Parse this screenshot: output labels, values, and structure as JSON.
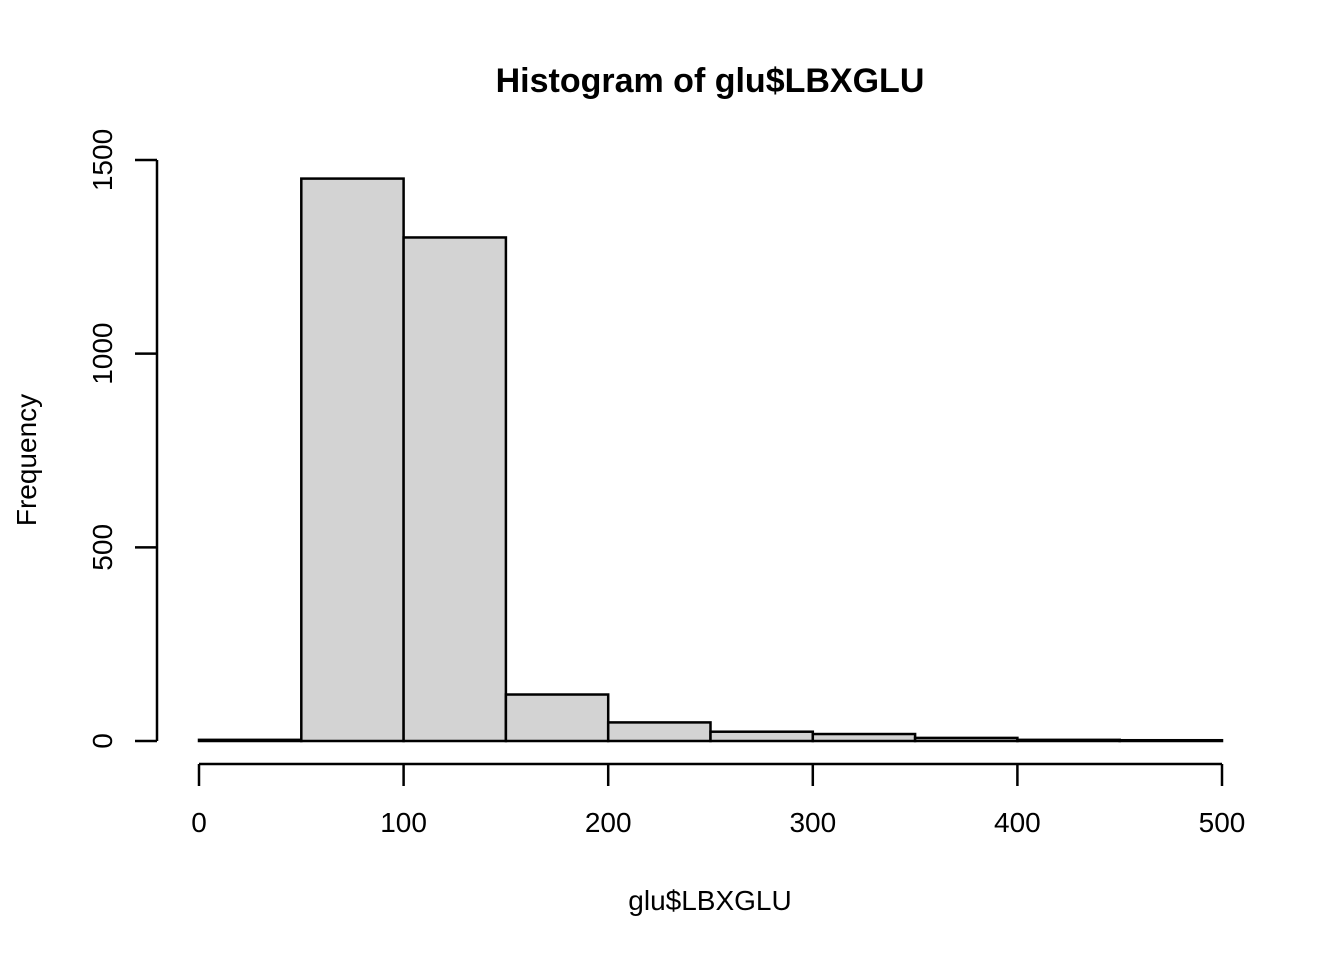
{
  "chart_data": {
    "type": "bar",
    "title": "Histogram of glu$LBXGLU",
    "xlabel": "glu$LBXGLU",
    "ylabel": "Frequency",
    "bins": [
      {
        "start": 0,
        "end": 50,
        "count": 3
      },
      {
        "start": 50,
        "end": 100,
        "count": 1452
      },
      {
        "start": 100,
        "end": 150,
        "count": 1300
      },
      {
        "start": 150,
        "end": 200,
        "count": 120
      },
      {
        "start": 200,
        "end": 250,
        "count": 48
      },
      {
        "start": 250,
        "end": 300,
        "count": 24
      },
      {
        "start": 300,
        "end": 350,
        "count": 18
      },
      {
        "start": 350,
        "end": 400,
        "count": 8
      },
      {
        "start": 400,
        "end": 450,
        "count": 3
      },
      {
        "start": 450,
        "end": 500,
        "count": 2
      }
    ],
    "xlim": [
      0,
      500
    ],
    "ylim": [
      0,
      1500
    ],
    "x_ticks": [
      0,
      100,
      200,
      300,
      400,
      500
    ],
    "y_ticks": [
      0,
      500,
      1000,
      1500
    ],
    "x_tick_labels": [
      "0",
      "100",
      "200",
      "300",
      "400",
      "500"
    ],
    "y_tick_labels": [
      "0",
      "500",
      "1000",
      "1500"
    ],
    "bar_fill": "#d3d3d3",
    "bar_stroke": "#000000",
    "grid": false
  }
}
